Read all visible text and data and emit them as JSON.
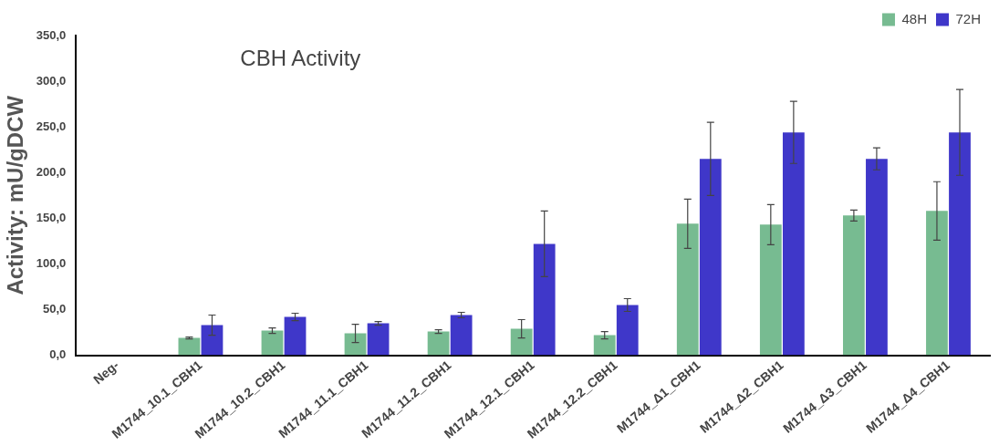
{
  "chart_data": {
    "type": "bar",
    "title": "CBH Activity",
    "ylabel": "Activity: mU/gDCW",
    "categories": [
      "Neg-",
      "M1744_10.1_CBH1",
      "M1744_10.2_CBH1",
      "M1744_11.1_CBH1",
      "M1744_11.2_CBH1",
      "M1744_12.1_CBH1",
      "M1744_12.2_CBH1",
      "M1744_Δ1_CBH1",
      "M1744_Δ2_CBH1",
      "M1744_Δ3_CBH1",
      "M1744_Δ4_CBH1"
    ],
    "series": [
      {
        "name": "48H",
        "color": "#77bb91",
        "values": [
          0,
          19,
          27,
          24,
          26,
          29,
          22,
          144,
          143,
          153,
          158
        ],
        "errors": [
          null,
          1,
          3,
          10,
          2,
          10,
          4,
          27,
          22,
          6,
          32
        ]
      },
      {
        "name": "72H",
        "color": "#3f37c9",
        "values": [
          0,
          33,
          42,
          35,
          44,
          122,
          55,
          215,
          244,
          215,
          244
        ],
        "errors": [
          null,
          11,
          4,
          2,
          3,
          36,
          7,
          40,
          34,
          12,
          47
        ]
      }
    ],
    "ylim": [
      0,
      350
    ],
    "yticks": [
      {
        "value": 0,
        "label": "0,0"
      },
      {
        "value": 50,
        "label": "50,0"
      },
      {
        "value": 100,
        "label": "100,0"
      },
      {
        "value": 150,
        "label": "150,0"
      },
      {
        "value": 200,
        "label": "200,0"
      },
      {
        "value": 250,
        "label": "250,0"
      },
      {
        "value": 300,
        "label": "300,0"
      },
      {
        "value": 350,
        "label": "350,0"
      }
    ],
    "grid": false,
    "legend": "top right"
  }
}
